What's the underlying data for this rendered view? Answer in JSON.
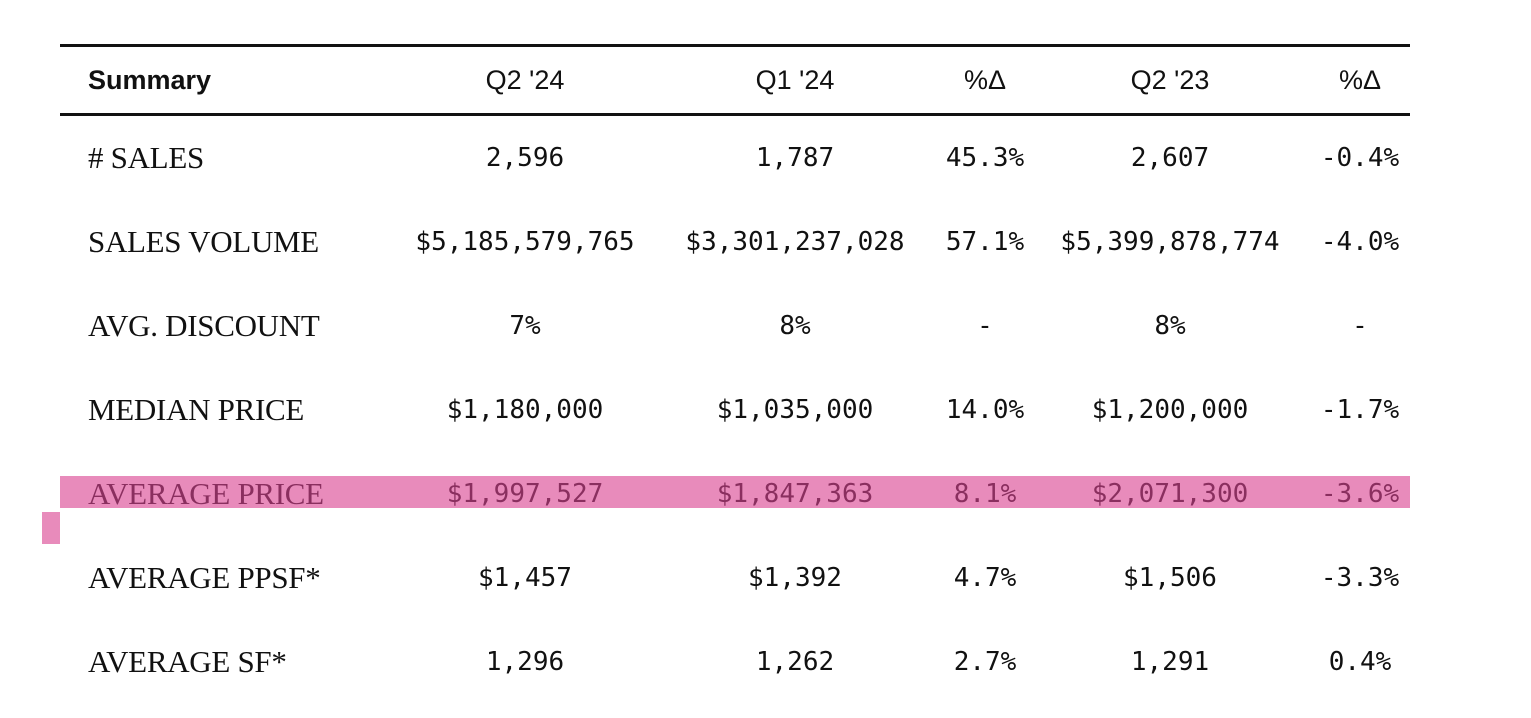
{
  "table": {
    "headers": [
      "Summary",
      "Q2 '24",
      "Q1 '24",
      "%Δ",
      "Q2 '23",
      "%Δ"
    ],
    "rows": [
      {
        "label": "# SALES",
        "values": [
          "2,596",
          "1,787",
          "45.3%",
          "2,607",
          "-0.4%"
        ]
      },
      {
        "label": "SALES VOLUME",
        "values": [
          "$5,185,579,765",
          "$3,301,237,028",
          "57.1%",
          "$5,399,878,774",
          "-4.0%"
        ]
      },
      {
        "label": "AVG. DISCOUNT",
        "values": [
          "7%",
          "8%",
          "-",
          "8%",
          "-"
        ]
      },
      {
        "label": "MEDIAN PRICE",
        "values": [
          "$1,180,000",
          "$1,035,000",
          "14.0%",
          "$1,200,000",
          "-1.7%"
        ]
      },
      {
        "label": "AVERAGE PRICE",
        "values": [
          "$1,997,527",
          "$1,847,363",
          "8.1%",
          "$2,071,300",
          "-3.6%"
        ]
      },
      {
        "label": "AVERAGE PPSF*",
        "values": [
          "$1,457",
          "$1,392",
          "4.7%",
          "$1,506",
          "-3.3%"
        ]
      },
      {
        "label": "AVERAGE SF*",
        "values": [
          "1,296",
          "1,262",
          "2.7%",
          "1,291",
          "0.4%"
        ]
      }
    ],
    "highlight_color": "#e88bbb",
    "highlight_text_color": "#8a2f5f"
  }
}
